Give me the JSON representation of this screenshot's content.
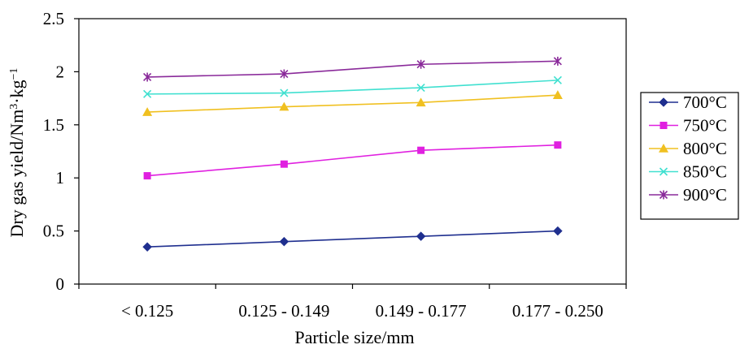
{
  "chart_data": {
    "type": "line",
    "title": "",
    "xlabel": "Particle size/mm",
    "ylabel_parts": {
      "base": "Dry gas yield/Nm",
      "sup1": "3",
      "mid": "·kg",
      "sup2": "−1"
    },
    "categories": [
      "< 0.125",
      "0.125 - 0.149",
      "0.149 - 0.177",
      "0.177 - 0.250"
    ],
    "ylim": [
      0,
      2.5
    ],
    "yticks": [
      "0",
      "0.5",
      "1",
      "1.5",
      "2",
      "2.5"
    ],
    "grid": false,
    "legend_position": "right",
    "series": [
      {
        "name": "700°C",
        "color": "#1f2f8f",
        "marker": "diamond",
        "values": [
          0.35,
          0.4,
          0.45,
          0.5
        ]
      },
      {
        "name": "750°C",
        "color": "#e020e0",
        "marker": "square",
        "values": [
          1.02,
          1.13,
          1.26,
          1.31
        ]
      },
      {
        "name": "800°C",
        "color": "#f0c020",
        "marker": "triangle",
        "values": [
          1.62,
          1.67,
          1.71,
          1.78
        ]
      },
      {
        "name": "850°C",
        "color": "#40e0d0",
        "marker": "x",
        "values": [
          1.79,
          1.8,
          1.85,
          1.92
        ]
      },
      {
        "name": "900°C",
        "color": "#8a2a9a",
        "marker": "star",
        "values": [
          1.95,
          1.98,
          2.07,
          2.1
        ]
      }
    ]
  }
}
